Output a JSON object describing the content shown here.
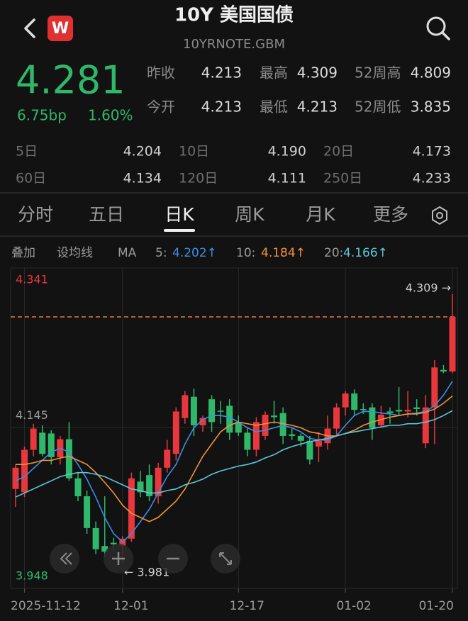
{
  "header": {
    "title": "10Y 美国国债",
    "subtitle": "10YRNOTE.GBM",
    "logo": "W"
  },
  "quote": {
    "price": "4.281",
    "change_bp": "6.75bp",
    "change_pct": "1.60%"
  },
  "stats": [
    [
      {
        "label": "昨收",
        "value": "4.213"
      },
      {
        "label": "最高",
        "value": "4.309"
      },
      {
        "label": "52周高",
        "value": "4.809"
      }
    ],
    [
      {
        "label": "今开",
        "value": "4.213"
      },
      {
        "label": "最低",
        "value": "4.213"
      },
      {
        "label": "52周低",
        "value": "3.835"
      }
    ],
    [
      {
        "label": "5日",
        "value": "4.204"
      },
      {
        "label": "10日",
        "value": "4.190"
      },
      {
        "label": "20日",
        "value": "4.173"
      }
    ],
    [
      {
        "label": "60日",
        "value": "4.134"
      },
      {
        "label": "120日",
        "value": "4.111"
      },
      {
        "label": "250日",
        "value": "4.233"
      }
    ]
  ],
  "tabs": [
    {
      "label": "分时",
      "selected": false
    },
    {
      "label": "五日",
      "selected": false
    },
    {
      "label": "日K",
      "selected": true
    },
    {
      "label": "周K",
      "selected": false
    },
    {
      "label": "月K",
      "selected": false
    },
    {
      "label": "更多",
      "selected": false
    }
  ],
  "ma_bar": {
    "overlay": "叠加",
    "set_ma": "设均线",
    "ma": "MA",
    "items": [
      {
        "label": "5:",
        "value": "4.202↑",
        "color": "#3a8ee6"
      },
      {
        "label": "10:",
        "value": "4.184↑",
        "color": "#f0913a"
      },
      {
        "label": "20:",
        "value": "4.166↑",
        "color": "#5cc6d8"
      }
    ]
  },
  "chart": {
    "type": "candlestick",
    "up_color": "#e8383d",
    "down_color": "#2fb86a",
    "ylim": [
      3.948,
      4.341
    ],
    "yticks": [
      {
        "value": 4.341,
        "label": "4.341",
        "color": "#e8383d"
      },
      {
        "value": 4.145,
        "label": "4.145",
        "color": "#9a9a9a"
      },
      {
        "value": 3.948,
        "label": "3.948",
        "color": "#2fb86a"
      }
    ],
    "high_label": "4.309 →",
    "low_label": "← 3.981",
    "categories": [
      null,
      "2025-11-12",
      null,
      null,
      null,
      null,
      null,
      null,
      null,
      null,
      null,
      null,
      "12-01",
      null,
      null,
      null,
      null,
      null,
      null,
      null,
      null,
      null,
      null,
      null,
      null,
      "12-17",
      null,
      null,
      null,
      null,
      null,
      null,
      null,
      null,
      null,
      null,
      null,
      "01-02",
      null,
      null,
      null,
      null,
      null,
      null,
      null,
      null,
      null,
      null,
      null,
      "01-20"
    ],
    "open": [
      4.07,
      4.066,
      4.118,
      4.139,
      4.138,
      4.109,
      4.131,
      4.083,
      4.061,
      4.022,
      4.0,
      4.004,
      4.0,
      4.009,
      4.079,
      4.087,
      4.061,
      4.096,
      4.113,
      4.157,
      4.183,
      4.148,
      4.18,
      4.166,
      4.172,
      4.152,
      4.139,
      4.118,
      4.135,
      4.16,
      4.163,
      4.137,
      4.135,
      4.129,
      4.122,
      4.126,
      4.144,
      4.17,
      4.187,
      4.168,
      4.17,
      4.148,
      4.165,
      4.167,
      4.165,
      4.17,
      4.126,
      4.17,
      4.216,
      4.214
    ],
    "high": [
      4.1,
      4.122,
      4.15,
      4.148,
      4.142,
      4.135,
      4.152,
      4.09,
      4.068,
      4.03,
      4.061,
      4.01,
      4.012,
      4.09,
      4.092,
      4.1,
      4.102,
      4.13,
      4.17,
      4.19,
      4.193,
      4.16,
      4.185,
      4.178,
      4.18,
      4.16,
      4.145,
      4.158,
      4.165,
      4.178,
      4.17,
      4.145,
      4.138,
      4.135,
      4.14,
      4.16,
      4.175,
      4.19,
      4.192,
      4.175,
      4.175,
      4.172,
      4.17,
      4.195,
      4.19,
      4.18,
      4.185,
      4.228,
      4.222,
      4.309
    ],
    "low": [
      4.048,
      4.06,
      4.11,
      4.11,
      4.1,
      4.1,
      4.08,
      4.055,
      4.015,
      3.99,
      3.987,
      3.995,
      3.981,
      4.005,
      4.06,
      4.055,
      4.052,
      4.09,
      4.105,
      4.15,
      4.135,
      4.14,
      4.14,
      4.15,
      4.13,
      4.135,
      4.11,
      4.11,
      4.13,
      4.15,
      4.125,
      4.13,
      4.122,
      4.1,
      4.103,
      4.118,
      4.135,
      4.16,
      4.16,
      4.162,
      4.13,
      4.145,
      4.15,
      4.16,
      4.158,
      4.16,
      4.12,
      4.125,
      4.212,
      4.212
    ],
    "close": [
      4.096,
      4.118,
      4.144,
      4.113,
      4.109,
      4.131,
      4.083,
      4.061,
      4.022,
      3.996,
      3.993,
      4.002,
      4.009,
      4.083,
      4.066,
      4.061,
      4.096,
      4.118,
      4.165,
      4.185,
      4.148,
      4.157,
      4.152,
      4.165,
      4.139,
      4.139,
      4.118,
      4.152,
      4.161,
      4.158,
      4.135,
      4.135,
      4.129,
      4.106,
      4.129,
      4.144,
      4.17,
      4.187,
      4.167,
      4.167,
      4.145,
      4.161,
      4.163,
      4.165,
      4.167,
      4.168,
      4.17,
      4.219,
      4.214,
      4.281
    ],
    "ma_lines": [
      {
        "color": "#3a8ee6",
        "values": [
          4.08,
          4.085,
          4.095,
          4.105,
          4.115,
          4.12,
          4.115,
          4.1,
          4.082,
          4.06,
          4.035,
          4.015,
          4.005,
          4.015,
          4.03,
          4.045,
          4.065,
          4.085,
          4.1,
          4.125,
          4.145,
          4.155,
          4.16,
          4.16,
          4.158,
          4.152,
          4.145,
          4.14,
          4.142,
          4.145,
          4.148,
          4.145,
          4.14,
          4.132,
          4.13,
          4.13,
          4.135,
          4.148,
          4.16,
          4.165,
          4.165,
          4.163,
          4.162,
          4.16,
          4.162,
          4.163,
          4.165,
          4.172,
          4.185,
          4.202
        ]
      },
      {
        "color": "#f0913a",
        "values": [
          4.1,
          4.1,
          4.102,
          4.105,
          4.105,
          4.108,
          4.11,
          4.105,
          4.1,
          4.09,
          4.078,
          4.065,
          4.05,
          4.04,
          4.035,
          4.03,
          4.035,
          4.045,
          4.055,
          4.07,
          4.09,
          4.11,
          4.125,
          4.14,
          4.148,
          4.152,
          4.15,
          4.148,
          4.15,
          4.152,
          4.15,
          4.148,
          4.145,
          4.14,
          4.138,
          4.135,
          4.135,
          4.138,
          4.142,
          4.148,
          4.152,
          4.155,
          4.158,
          4.16,
          4.162,
          4.162,
          4.164,
          4.168,
          4.175,
          4.184
        ]
      },
      {
        "color": "#5cc6d8",
        "values": [
          4.06,
          4.065,
          4.07,
          4.075,
          4.08,
          4.085,
          4.088,
          4.09,
          4.09,
          4.088,
          4.085,
          4.08,
          4.075,
          4.07,
          4.068,
          4.065,
          4.065,
          4.068,
          4.07,
          4.075,
          4.078,
          4.082,
          4.088,
          4.092,
          4.095,
          4.098,
          4.1,
          4.103,
          4.108,
          4.112,
          4.118,
          4.122,
          4.125,
          4.128,
          4.13,
          4.132,
          4.135,
          4.138,
          4.14,
          4.142,
          4.144,
          4.146,
          4.148,
          4.148,
          4.15,
          4.15,
          4.152,
          4.155,
          4.16,
          4.166
        ]
      }
    ]
  }
}
